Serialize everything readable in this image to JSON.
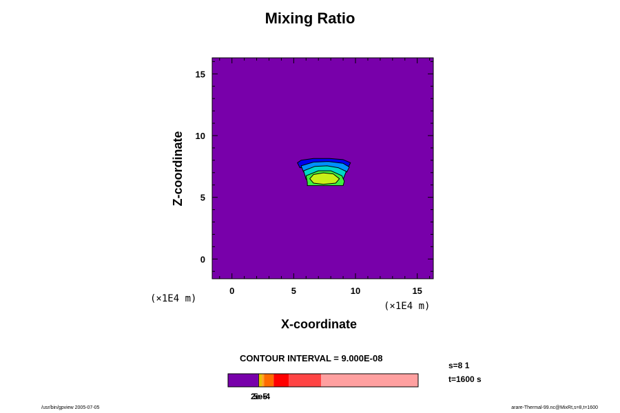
{
  "title": "Mixing Ratio",
  "footer_left": "/usr/bin/gpview 2005-07-05",
  "footer_right": "arare-Thermal-99.nc@MixRt,s=8,t=1600",
  "contour_interval": "CONTOUR INTERVAL = 9.000E-08",
  "info": {
    "s": "s=8 1",
    "t": "t=1600 s"
  },
  "chart_data": {
    "type": "heatmap",
    "title": "Mixing Ratio",
    "xlabel": "X-coordinate",
    "ylabel": "Z-coordinate",
    "x_unit": "(×1E4 m)",
    "z_unit": "(×1E4 m)",
    "xlim": [
      -1.6,
      16.3
    ],
    "ylim": [
      -1.6,
      16.3
    ],
    "x_ticks": [
      0,
      5,
      10,
      15
    ],
    "y_ticks": [
      0,
      5,
      10,
      15
    ],
    "background_color": "#7800aa",
    "contours": [
      {
        "color": "#0000ee",
        "outline": "#000000",
        "points": [
          [
            5.3,
            7.8
          ],
          [
            5.6,
            8.0
          ],
          [
            6.6,
            8.15
          ],
          [
            7.9,
            8.15
          ],
          [
            9.0,
            8.05
          ],
          [
            9.6,
            7.8
          ],
          [
            9.4,
            7.4
          ],
          [
            5.5,
            7.4
          ]
        ]
      },
      {
        "color": "#0090ff",
        "outline": "#000000",
        "points": [
          [
            5.6,
            7.55
          ],
          [
            6.6,
            7.85
          ],
          [
            7.8,
            7.9
          ],
          [
            9.0,
            7.75
          ],
          [
            9.5,
            7.45
          ],
          [
            9.3,
            7.05
          ],
          [
            5.8,
            7.05
          ]
        ]
      },
      {
        "color": "#00d8c8",
        "outline": "#000000",
        "points": [
          [
            5.8,
            7.15
          ],
          [
            6.7,
            7.5
          ],
          [
            7.7,
            7.55
          ],
          [
            8.6,
            7.4
          ],
          [
            9.25,
            7.1
          ],
          [
            9.0,
            6.45
          ],
          [
            6.0,
            6.45
          ]
        ]
      },
      {
        "color": "#40ee40",
        "outline": "#000000",
        "points": [
          [
            6.0,
            6.75
          ],
          [
            6.1,
            6.2
          ],
          [
            6.1,
            5.95
          ],
          [
            9.0,
            5.95
          ],
          [
            9.1,
            6.3
          ],
          [
            8.9,
            6.75
          ],
          [
            8.0,
            7.15
          ],
          [
            7.0,
            7.15
          ]
        ]
      },
      {
        "color": "#c8f018",
        "outline": "#000000",
        "points": [
          [
            6.3,
            6.5
          ],
          [
            6.6,
            6.85
          ],
          [
            7.4,
            6.98
          ],
          [
            8.2,
            6.9
          ],
          [
            8.7,
            6.5
          ],
          [
            8.4,
            6.15
          ],
          [
            7.4,
            6.05
          ],
          [
            6.6,
            6.15
          ]
        ]
      }
    ],
    "colorbar": {
      "segments": [
        {
          "color": "#7800aa",
          "from": 0,
          "to": 0.16
        },
        {
          "color": "#000000",
          "from": 0.16,
          "to": 0.163
        },
        {
          "color": "#e8c000",
          "from": 0.163,
          "to": 0.178
        },
        {
          "color": "#ffa020",
          "from": 0.178,
          "to": 0.19
        },
        {
          "color": "#ff6a00",
          "from": 0.19,
          "to": 0.24
        },
        {
          "color": "#ff0000",
          "from": 0.24,
          "to": 0.32
        },
        {
          "color": "#ff4444",
          "from": 0.32,
          "to": 0.49
        },
        {
          "color": "#ffa0a0",
          "from": 0.49,
          "to": 1.0
        }
      ],
      "tick_labels": [
        "2e-5",
        "5e-4"
      ]
    }
  }
}
